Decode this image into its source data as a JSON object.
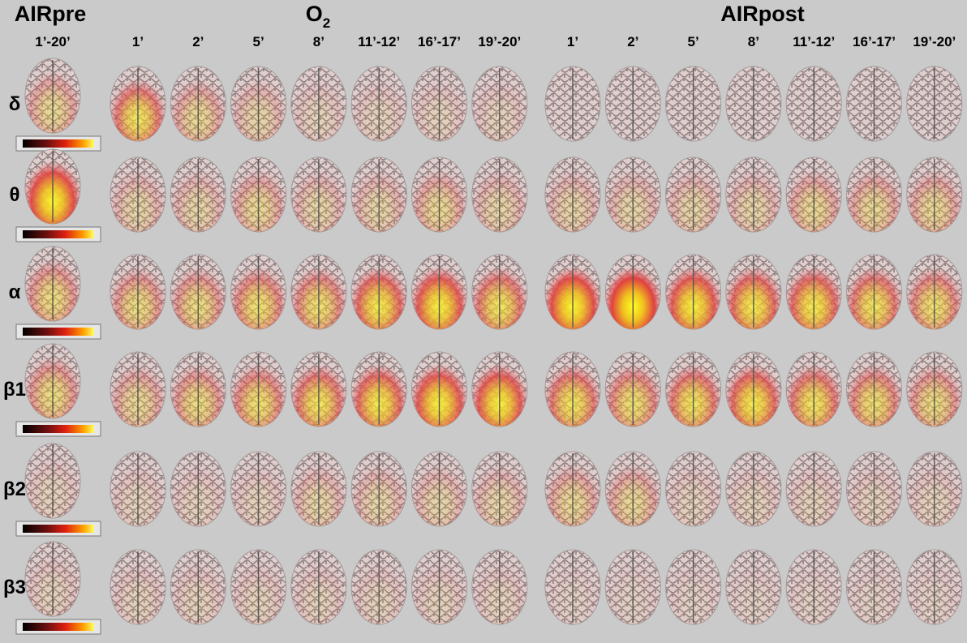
{
  "groups": [
    {
      "title": "AIRpre",
      "columns": [
        "1’-20’"
      ]
    },
    {
      "title": "O",
      "title_sub": "2",
      "columns": [
        "1’",
        "2’",
        "5’",
        "8’",
        "11’-12’",
        "16’-17’",
        "19’-20’"
      ]
    },
    {
      "title": "AIRpost",
      "columns": [
        "1’",
        "2’",
        "5’",
        "8’",
        "11’-12’",
        "16’-17’",
        "19’-20’"
      ]
    }
  ],
  "rows": [
    "δ",
    "θ",
    "α",
    "β1",
    "β2",
    "β3"
  ]
}
